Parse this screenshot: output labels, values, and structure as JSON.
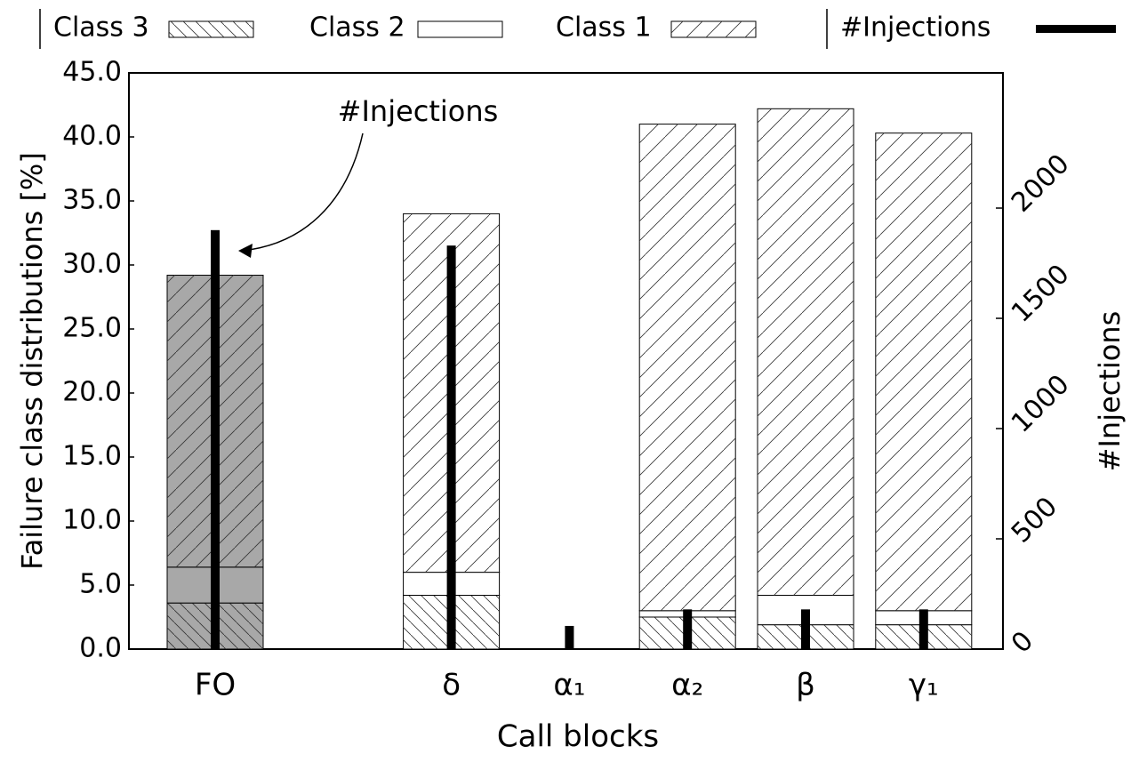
{
  "chart_data": {
    "type": "bar",
    "xlabel": "Call blocks",
    "ylabel": "Failure class distributions [%]",
    "y2label": "#Injections",
    "annotation": "#Injections",
    "categories": [
      "FO",
      null,
      "δ",
      "α₁",
      "α₂",
      "β",
      "γ₁"
    ],
    "bar_colors": [
      "#a8a8a8",
      null,
      "#ffffff",
      "#ffffff",
      "#ffffff",
      "#ffffff",
      "#ffffff"
    ],
    "series": [
      {
        "name": "Class 3",
        "hatch": "\\",
        "values": [
          3.6,
          null,
          4.2,
          0,
          2.5,
          1.9,
          1.9
        ]
      },
      {
        "name": "Class 2",
        "hatch": "none",
        "values": [
          2.8,
          null,
          1.8,
          0,
          0.5,
          2.3,
          1.1
        ]
      },
      {
        "name": "Class 1",
        "hatch": "/",
        "values": [
          22.8,
          null,
          28.0,
          0,
          38.0,
          38.0,
          37.3
        ]
      },
      {
        "name": "#Injections",
        "axis": "y2",
        "color": "#000000",
        "values": [
          1900,
          null,
          1830,
          105,
          180,
          180,
          180
        ]
      }
    ],
    "ylim": [
      0,
      45
    ],
    "yticks": [
      {
        "value": 0,
        "label": "0.0"
      },
      {
        "value": 5,
        "label": "5.0"
      },
      {
        "value": 10,
        "label": "10.0"
      },
      {
        "value": 15,
        "label": "15.0"
      },
      {
        "value": 20,
        "label": "20.0"
      },
      {
        "value": 25,
        "label": "25.0"
      },
      {
        "value": 30,
        "label": "30.0"
      },
      {
        "value": 35,
        "label": "35.0"
      },
      {
        "value": 40,
        "label": "40.0"
      },
      {
        "value": 45,
        "label": "45.0"
      }
    ],
    "y2lim": [
      0,
      2613
    ],
    "y2ticks": [
      0,
      500,
      1000,
      1500,
      2000
    ]
  }
}
